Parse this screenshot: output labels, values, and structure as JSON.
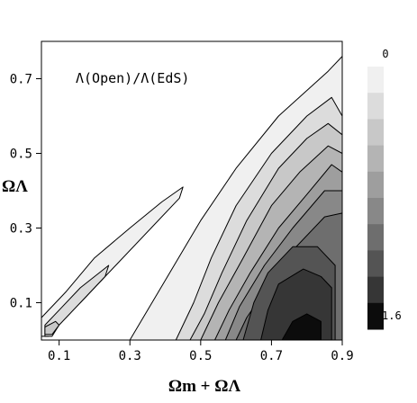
{
  "chart_data": {
    "type": "heatmap",
    "title": "",
    "annotation": "Λ(Open)/Λ(EdS)",
    "xlabel": "Ωm + ΩΛ",
    "ylabel": "ΩΛ",
    "xlim": [
      0.05,
      0.9
    ],
    "ylim": [
      0.0,
      0.8
    ],
    "x_ticks": [
      "0.1",
      "0.3",
      "0.5",
      "0.7",
      "0.9"
    ],
    "x_tick_values": [
      0.1,
      0.3,
      0.5,
      0.7,
      0.9
    ],
    "y_ticks": [
      "0.1",
      "0.3",
      "0.5",
      "0.7"
    ],
    "y_tick_values": [
      0.1,
      0.3,
      0.5,
      0.7
    ],
    "colorbar": {
      "min_label": "0",
      "max_label": "1.6",
      "min": 0,
      "max": 1.6,
      "levels": 10,
      "colors": [
        "#f0f0f0",
        "#dcdcdc",
        "#c8c8c8",
        "#b4b4b4",
        "#9e9e9e",
        "#888888",
        "#6e6e6e",
        "#545454",
        "#363636",
        "#0c0c0c"
      ]
    },
    "regions": [
      {
        "level": 1,
        "polygon": [
          [
            0.3,
            0.0
          ],
          [
            0.9,
            0.0
          ],
          [
            0.9,
            0.76
          ],
          [
            0.86,
            0.72
          ],
          [
            0.72,
            0.6
          ],
          [
            0.6,
            0.46
          ],
          [
            0.5,
            0.32
          ],
          [
            0.4,
            0.16
          ]
        ]
      },
      {
        "level": 2,
        "polygon": [
          [
            0.43,
            0.0
          ],
          [
            0.9,
            0.0
          ],
          [
            0.9,
            0.6
          ],
          [
            0.87,
            0.65
          ],
          [
            0.8,
            0.6
          ],
          [
            0.7,
            0.5
          ],
          [
            0.6,
            0.36
          ],
          [
            0.53,
            0.22
          ],
          [
            0.48,
            0.1
          ]
        ]
      },
      {
        "level": 3,
        "polygon": [
          [
            0.47,
            0.0
          ],
          [
            0.9,
            0.0
          ],
          [
            0.9,
            0.55
          ],
          [
            0.86,
            0.58
          ],
          [
            0.8,
            0.54
          ],
          [
            0.72,
            0.46
          ],
          [
            0.63,
            0.32
          ],
          [
            0.56,
            0.18
          ],
          [
            0.51,
            0.07
          ]
        ]
      },
      {
        "level": 4,
        "polygon": [
          [
            0.5,
            0.0
          ],
          [
            0.9,
            0.0
          ],
          [
            0.9,
            0.5
          ],
          [
            0.86,
            0.52
          ],
          [
            0.78,
            0.45
          ],
          [
            0.7,
            0.36
          ],
          [
            0.62,
            0.22
          ],
          [
            0.55,
            0.1
          ]
        ]
      },
      {
        "level": 5,
        "polygon": [
          [
            0.54,
            0.0
          ],
          [
            0.9,
            0.0
          ],
          [
            0.9,
            0.45
          ],
          [
            0.87,
            0.47
          ],
          [
            0.8,
            0.39
          ],
          [
            0.72,
            0.3
          ],
          [
            0.64,
            0.18
          ],
          [
            0.58,
            0.08
          ]
        ]
      },
      {
        "level": 6,
        "polygon": [
          [
            0.57,
            0.0
          ],
          [
            0.9,
            0.0
          ],
          [
            0.9,
            0.4
          ],
          [
            0.85,
            0.4
          ],
          [
            0.76,
            0.3
          ],
          [
            0.68,
            0.2
          ],
          [
            0.61,
            0.09
          ]
        ]
      },
      {
        "level": 7,
        "polygon": [
          [
            0.6,
            0.0
          ],
          [
            0.9,
            0.0
          ],
          [
            0.9,
            0.34
          ],
          [
            0.85,
            0.33
          ],
          [
            0.76,
            0.24
          ],
          [
            0.68,
            0.13
          ],
          [
            0.63,
            0.06
          ]
        ]
      },
      {
        "level": 8,
        "polygon": [
          [
            0.62,
            0.0
          ],
          [
            0.88,
            0.0
          ],
          [
            0.88,
            0.2
          ],
          [
            0.83,
            0.25
          ],
          [
            0.76,
            0.25
          ],
          [
            0.69,
            0.18
          ],
          [
            0.65,
            0.1
          ]
        ]
      },
      {
        "level": 9,
        "polygon": [
          [
            0.67,
            0.0
          ],
          [
            0.87,
            0.0
          ],
          [
            0.87,
            0.14
          ],
          [
            0.84,
            0.17
          ],
          [
            0.79,
            0.19
          ],
          [
            0.72,
            0.15
          ],
          [
            0.69,
            0.08
          ]
        ]
      },
      {
        "level": 10,
        "polygon": [
          [
            0.73,
            0.0
          ],
          [
            0.84,
            0.0
          ],
          [
            0.84,
            0.05
          ],
          [
            0.8,
            0.07
          ],
          [
            0.76,
            0.05
          ]
        ]
      },
      {
        "level": 1,
        "polygon": [
          [
            0.05,
            0.01
          ],
          [
            0.05,
            0.06
          ],
          [
            0.12,
            0.13
          ],
          [
            0.2,
            0.22
          ],
          [
            0.3,
            0.3
          ],
          [
            0.39,
            0.37
          ],
          [
            0.45,
            0.41
          ],
          [
            0.44,
            0.38
          ],
          [
            0.36,
            0.3
          ],
          [
            0.26,
            0.2
          ],
          [
            0.16,
            0.1
          ],
          [
            0.09,
            0.04
          ],
          [
            0.07,
            0.01
          ]
        ]
      },
      {
        "level": 2,
        "polygon": [
          [
            0.06,
            0.01
          ],
          [
            0.06,
            0.04
          ],
          [
            0.1,
            0.08
          ],
          [
            0.16,
            0.14
          ],
          [
            0.24,
            0.2
          ],
          [
            0.23,
            0.17
          ],
          [
            0.16,
            0.1
          ],
          [
            0.1,
            0.04
          ],
          [
            0.08,
            0.01
          ]
        ]
      },
      {
        "level": 3,
        "polygon": [
          [
            0.06,
            0.015
          ],
          [
            0.06,
            0.035
          ],
          [
            0.09,
            0.05
          ],
          [
            0.1,
            0.04
          ],
          [
            0.08,
            0.015
          ]
        ]
      }
    ]
  }
}
